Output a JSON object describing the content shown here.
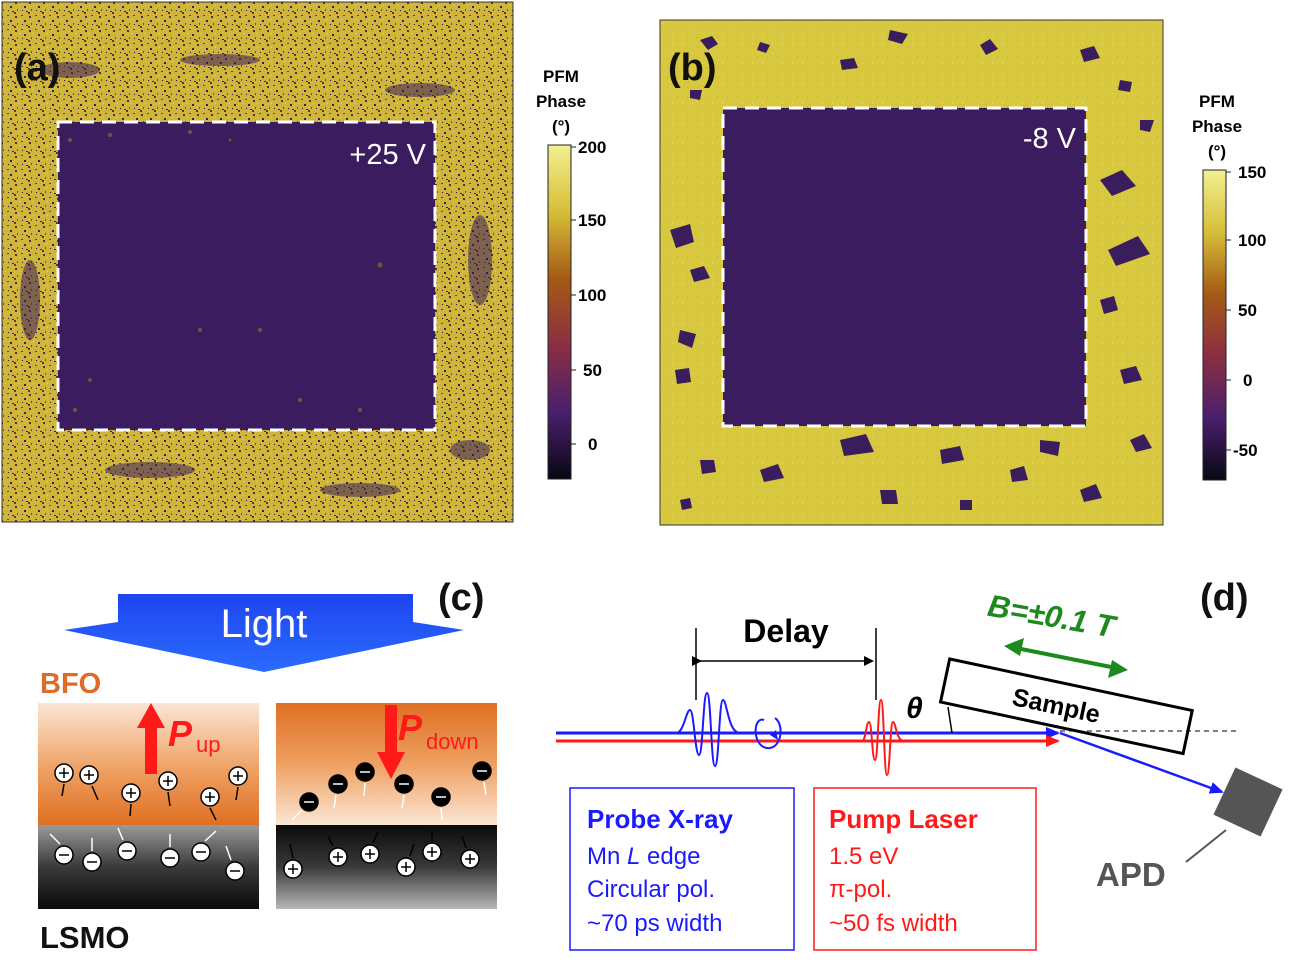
{
  "panel_a": {
    "label": "(a)",
    "voltage": "+25 V",
    "colorbar": {
      "title_line1": "PFM",
      "title_line2": "Phase",
      "title_line3": "(°)",
      "ticks": [
        "200",
        "150",
        "100",
        "50",
        "0"
      ]
    }
  },
  "panel_b": {
    "label": "(b)",
    "voltage": "-8 V",
    "colorbar": {
      "title_line1": "PFM",
      "title_line2": "Phase",
      "title_line3": "(°)",
      "ticks": [
        "150",
        "100",
        "50",
        "0",
        "-50"
      ]
    }
  },
  "panel_c": {
    "label": "(c)",
    "light": "Light",
    "top_layer": "BFO",
    "bottom_layer": "LSMO",
    "p_symbol": "P",
    "p_up_sub": "up",
    "p_down_sub": "down"
  },
  "panel_d": {
    "label": "(d)",
    "delay": "Delay",
    "field": "B=±0.1 T",
    "sample": "Sample",
    "angle": "θ",
    "detector": "APD",
    "probe": {
      "title": "Probe X-ray",
      "line1": "Mn ",
      "line1_italic": "L",
      "line1_end": " edge",
      "line2": "Circular pol.",
      "line3": "~70 ps width"
    },
    "pump": {
      "title": "Pump Laser",
      "line1": "1.5 eV",
      "line2": "π-pol.",
      "line3": "~50 fs width"
    }
  },
  "colors": {
    "domain_yellow": "#d4c23c",
    "domain_purple": "#3a1d5c",
    "bfo_orange": "#e07a2a",
    "lsmo_dark": "#222222",
    "light_arrow_blue": "#1f3fe6",
    "probe_blue": "#1a1aff",
    "pump_red": "#ff1a1a",
    "field_green": "#1e8a1e",
    "apd_grey": "#555555"
  }
}
